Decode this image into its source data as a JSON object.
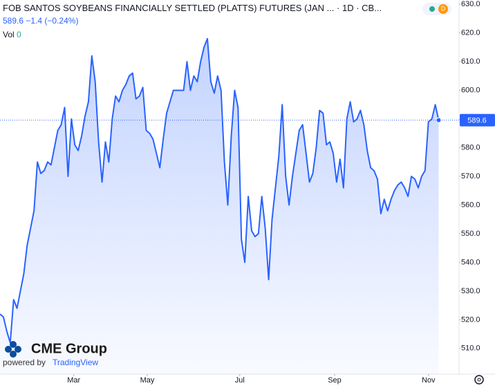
{
  "chart_data": {
    "type": "line",
    "title": "FOB SANTOS SOYBEANS FINANCIALLY SETTLED (PLATTS) FUTURES (JAN ...",
    "interval": "1D",
    "exchange": "CB...",
    "badge": "D",
    "last_price": 589.6,
    "change": "−1.4",
    "change_percent": "(−0.24%)",
    "volume_label": "Vol",
    "volume": 0,
    "brand": "CME Group",
    "powered_by": "powered by",
    "platform": "TradingView",
    "color": "#2962ff",
    "values": [
      522,
      521,
      516,
      512,
      527,
      524,
      530,
      536,
      546,
      552,
      558,
      575,
      571,
      572,
      575,
      574,
      580,
      586,
      588,
      594,
      570,
      590,
      581,
      579,
      584,
      591,
      596,
      612,
      603,
      582,
      568,
      582,
      575,
      590,
      598,
      596,
      600,
      602,
      605,
      606,
      597,
      598,
      601,
      586,
      585,
      583,
      578,
      573,
      583,
      592,
      596,
      600,
      600,
      600,
      600,
      610,
      600,
      605,
      603,
      610,
      615,
      618,
      603,
      599,
      605,
      600,
      575,
      560,
      584,
      600,
      594,
      548,
      540,
      563,
      551,
      549,
      550,
      563,
      552,
      534,
      555,
      566,
      577,
      595,
      570,
      560,
      570,
      578,
      586,
      588,
      578,
      568,
      571,
      580,
      593,
      592,
      581,
      582,
      578,
      568,
      576,
      566,
      590,
      596,
      589,
      590,
      593,
      588,
      579,
      573,
      572,
      569,
      557,
      562,
      558,
      562,
      565,
      567,
      568,
      566,
      563,
      570,
      569,
      566,
      570,
      572,
      589,
      590,
      595,
      589.6
    ],
    "xlim": [
      0,
      135
    ],
    "xticks": [
      {
        "value": 21.7,
        "label": "Mar"
      },
      {
        "value": 43.3,
        "label": "May"
      },
      {
        "value": 70.5,
        "label": "Jul"
      },
      {
        "value": 98.4,
        "label": "Sep"
      },
      {
        "value": 126,
        "label": "Nov"
      }
    ],
    "ylim": [
      502,
      631
    ],
    "yticks": [
      {
        "value": 510,
        "label": "510.0"
      },
      {
        "value": 520,
        "label": "520.0"
      },
      {
        "value": 530,
        "label": "530.0"
      },
      {
        "value": 540,
        "label": "540.0"
      },
      {
        "value": 550,
        "label": "550.0"
      },
      {
        "value": 560,
        "label": "560.0"
      },
      {
        "value": 570,
        "label": "570.0"
      },
      {
        "value": 580,
        "label": "580.0"
      },
      {
        "value": 590,
        "label": "590.0"
      },
      {
        "value": 600,
        "label": "600.0"
      },
      {
        "value": 610,
        "label": "610.0"
      },
      {
        "value": 620,
        "label": "620.0"
      },
      {
        "value": 630,
        "label": "630.0"
      }
    ],
    "grid": false
  }
}
